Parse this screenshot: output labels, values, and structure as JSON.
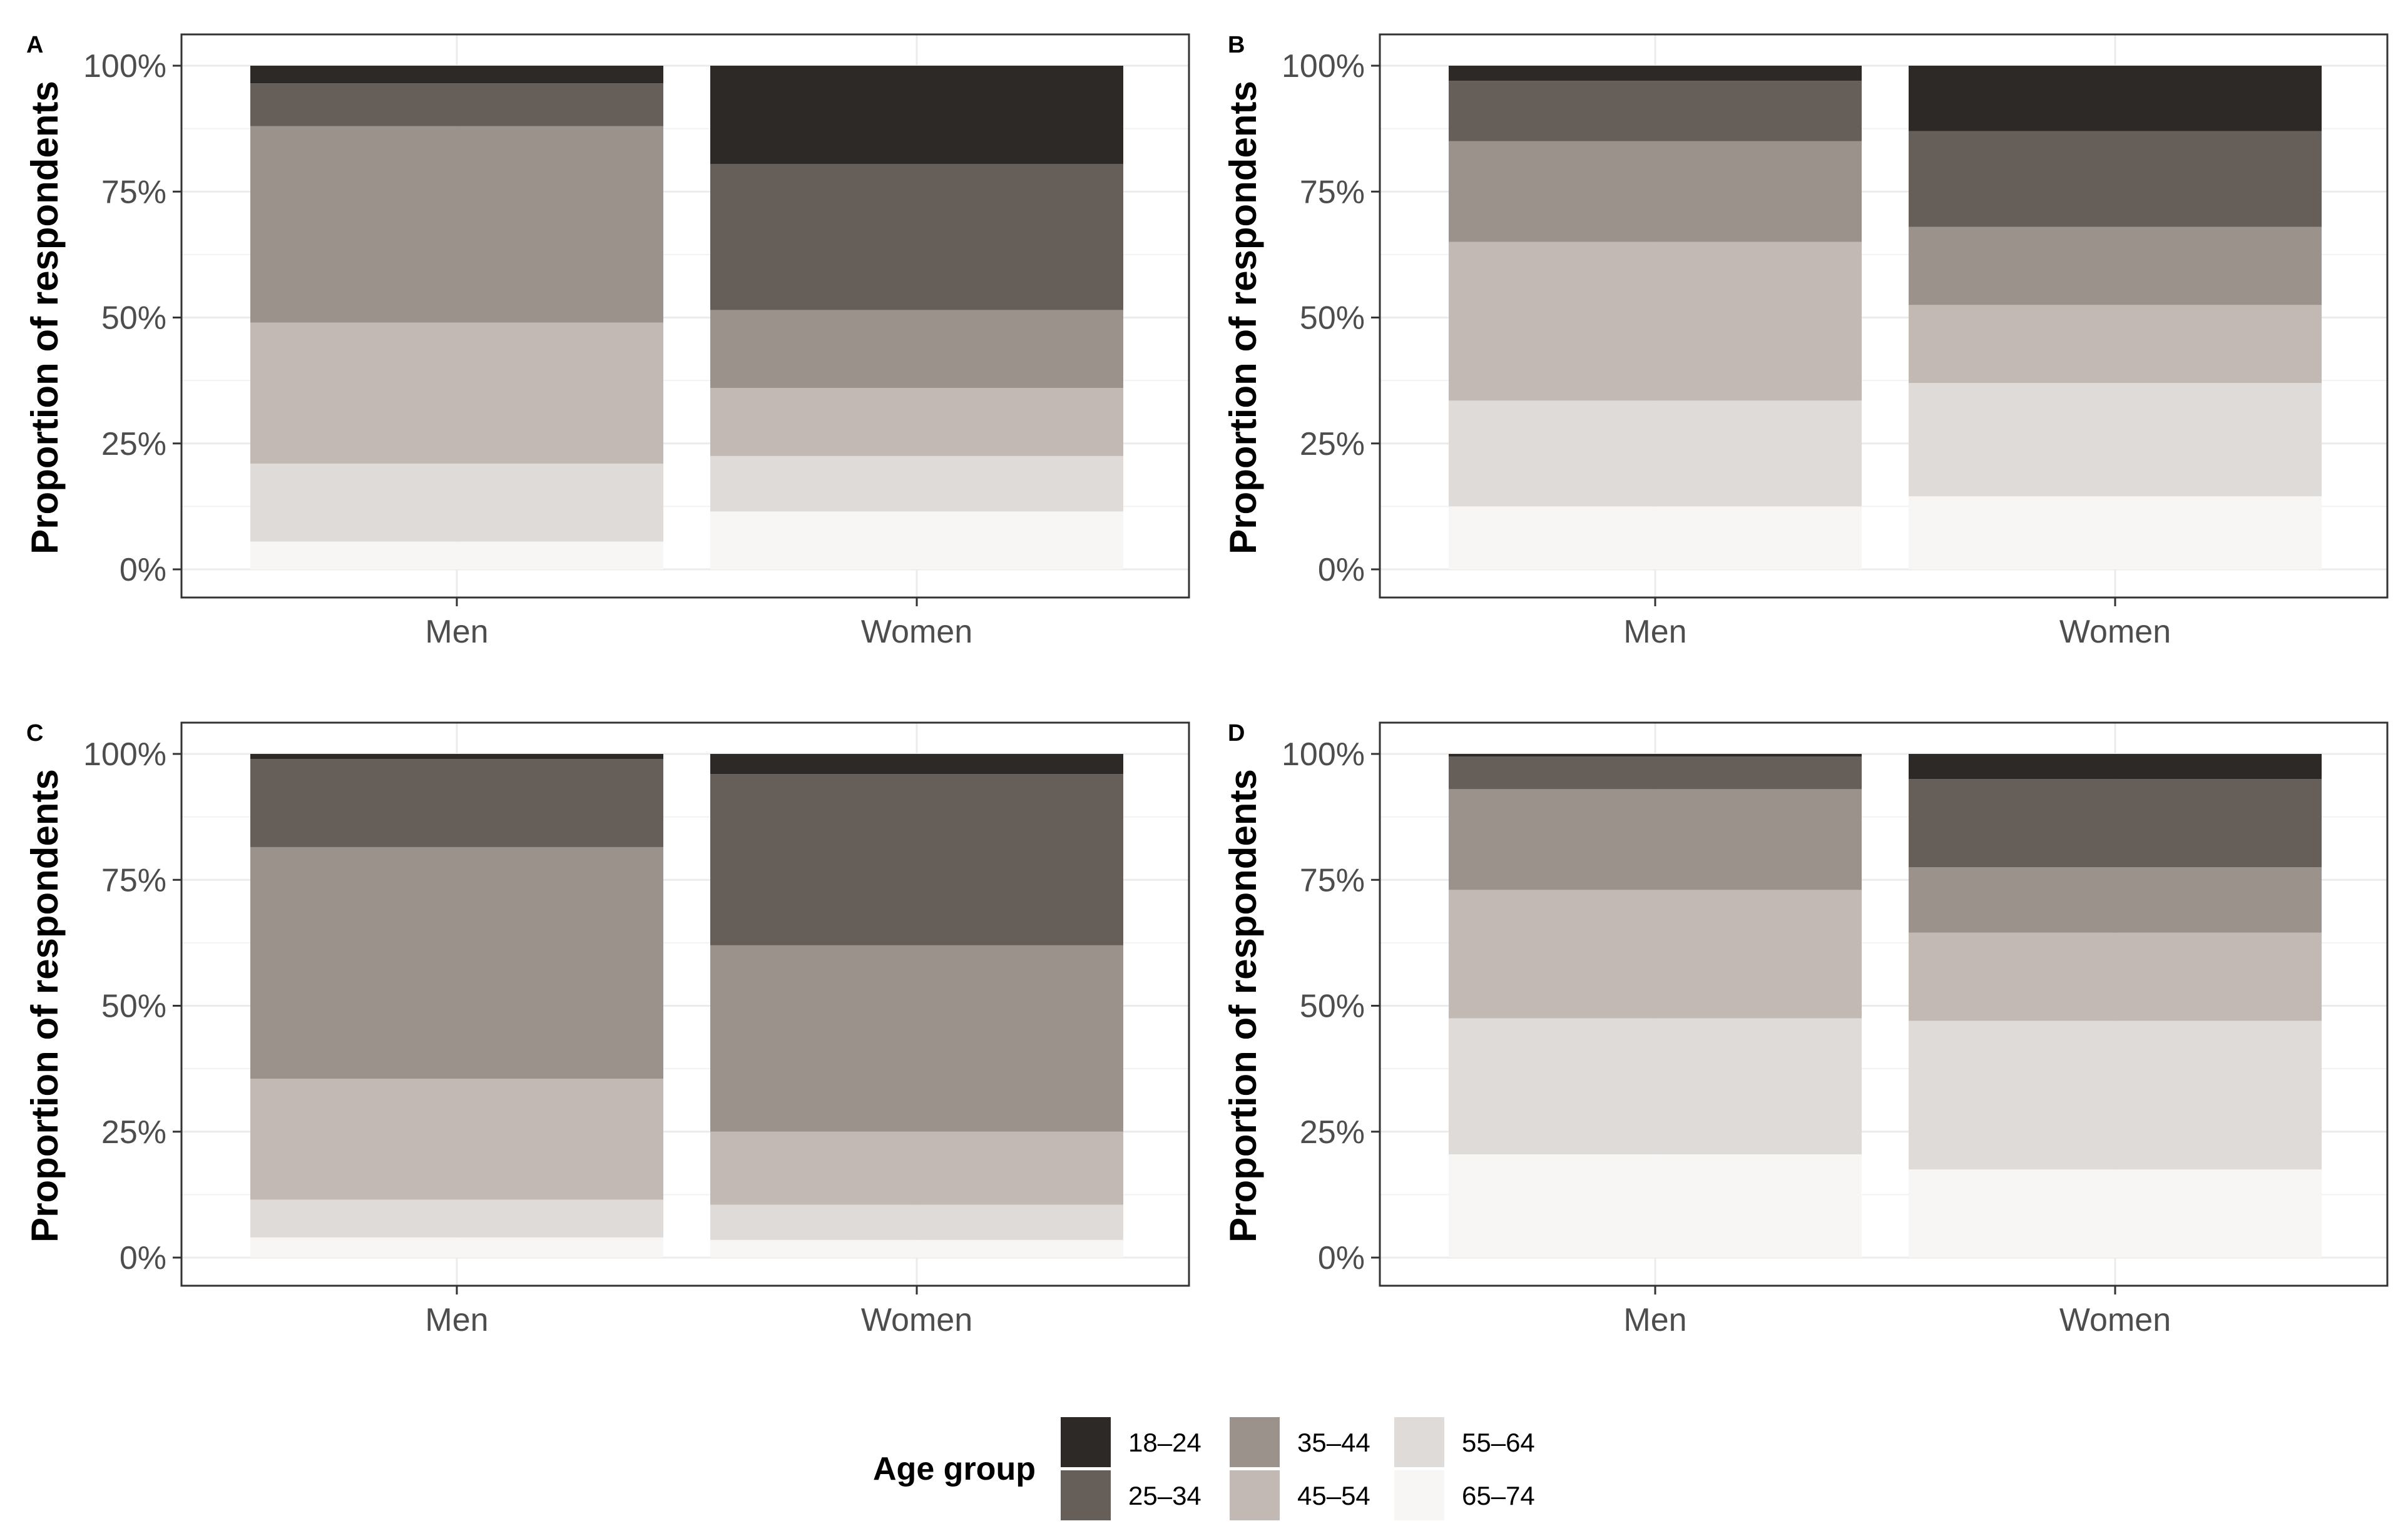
{
  "chart_data": [
    {
      "panel_label": "A",
      "type": "bar",
      "stacked": true,
      "categories": [
        "Men",
        "Women"
      ],
      "ylabel": "Proportion of respondents",
      "xlabel": "",
      "ylim": [
        0,
        100
      ],
      "yticks": [
        "0%",
        "25%",
        "50%",
        "75%",
        "100%"
      ],
      "series": [
        {
          "name": "65–74",
          "values": [
            5.5,
            11.5
          ]
        },
        {
          "name": "55–64",
          "values": [
            15.5,
            11.0
          ]
        },
        {
          "name": "45–54",
          "values": [
            28.0,
            13.5
          ]
        },
        {
          "name": "35–44",
          "values": [
            39.0,
            15.5
          ]
        },
        {
          "name": "25–34",
          "values": [
            8.5,
            29.0
          ]
        },
        {
          "name": "18–24",
          "values": [
            3.5,
            19.5
          ]
        }
      ]
    },
    {
      "panel_label": "B",
      "type": "bar",
      "stacked": true,
      "categories": [
        "Men",
        "Women"
      ],
      "ylabel": "Proportion of respondents",
      "xlabel": "",
      "ylim": [
        0,
        100
      ],
      "yticks": [
        "0%",
        "25%",
        "50%",
        "75%",
        "100%"
      ],
      "series": [
        {
          "name": "65–74",
          "values": [
            12.5,
            14.5
          ]
        },
        {
          "name": "55–64",
          "values": [
            21.0,
            22.5
          ]
        },
        {
          "name": "45–54",
          "values": [
            31.5,
            15.5
          ]
        },
        {
          "name": "35–44",
          "values": [
            20.0,
            15.5
          ]
        },
        {
          "name": "25–34",
          "values": [
            12.0,
            19.0
          ]
        },
        {
          "name": "18–24",
          "values": [
            3.0,
            13.0
          ]
        }
      ]
    },
    {
      "panel_label": "C",
      "type": "bar",
      "stacked": true,
      "categories": [
        "Men",
        "Women"
      ],
      "ylabel": "Proportion of respondents",
      "xlabel": "",
      "ylim": [
        0,
        100
      ],
      "yticks": [
        "0%",
        "25%",
        "50%",
        "75%",
        "100%"
      ],
      "series": [
        {
          "name": "65–74",
          "values": [
            4.0,
            3.5
          ]
        },
        {
          "name": "55–64",
          "values": [
            7.5,
            7.0
          ]
        },
        {
          "name": "45–54",
          "values": [
            24.0,
            14.5
          ]
        },
        {
          "name": "35–44",
          "values": [
            46.0,
            37.0
          ]
        },
        {
          "name": "25–34",
          "values": [
            17.5,
            34.0
          ]
        },
        {
          "name": "18–24",
          "values": [
            1.0,
            4.0
          ]
        }
      ]
    },
    {
      "panel_label": "D",
      "type": "bar",
      "stacked": true,
      "categories": [
        "Men",
        "Women"
      ],
      "ylabel": "Proportion of respondents",
      "xlabel": "",
      "ylim": [
        0,
        100
      ],
      "yticks": [
        "0%",
        "25%",
        "50%",
        "75%",
        "100%"
      ],
      "series": [
        {
          "name": "65–74",
          "values": [
            20.5,
            17.5
          ]
        },
        {
          "name": "55–64",
          "values": [
            27.0,
            29.5
          ]
        },
        {
          "name": "45–54",
          "values": [
            25.5,
            17.5
          ]
        },
        {
          "name": "35–44",
          "values": [
            20.0,
            13.0
          ]
        },
        {
          "name": "25–34",
          "values": [
            6.5,
            17.5
          ]
        },
        {
          "name": "18–24",
          "values": [
            0.5,
            5.0
          ]
        }
      ]
    }
  ],
  "legend": {
    "title": "Age group",
    "items": [
      {
        "label": "18–24",
        "color": "#2d2926"
      },
      {
        "label": "25–34",
        "color": "#665e58"
      },
      {
        "label": "35–44",
        "color": "#9b928c"
      },
      {
        "label": "45–54",
        "color": "#c2b9b4"
      },
      {
        "label": "55–64",
        "color": "#dfdbd8"
      },
      {
        "label": "65–74",
        "color": "#f7f6f5"
      }
    ]
  },
  "colors": {
    "18–24": "#2d2926",
    "25–34": "#665e58",
    "35–44": "#9b928c",
    "45–54": "#c2b9b4",
    "55–64": "#dfdbd8",
    "65–74": "#f7f6f5",
    "panel_border": "#333333",
    "grid": "#ebebeb"
  }
}
